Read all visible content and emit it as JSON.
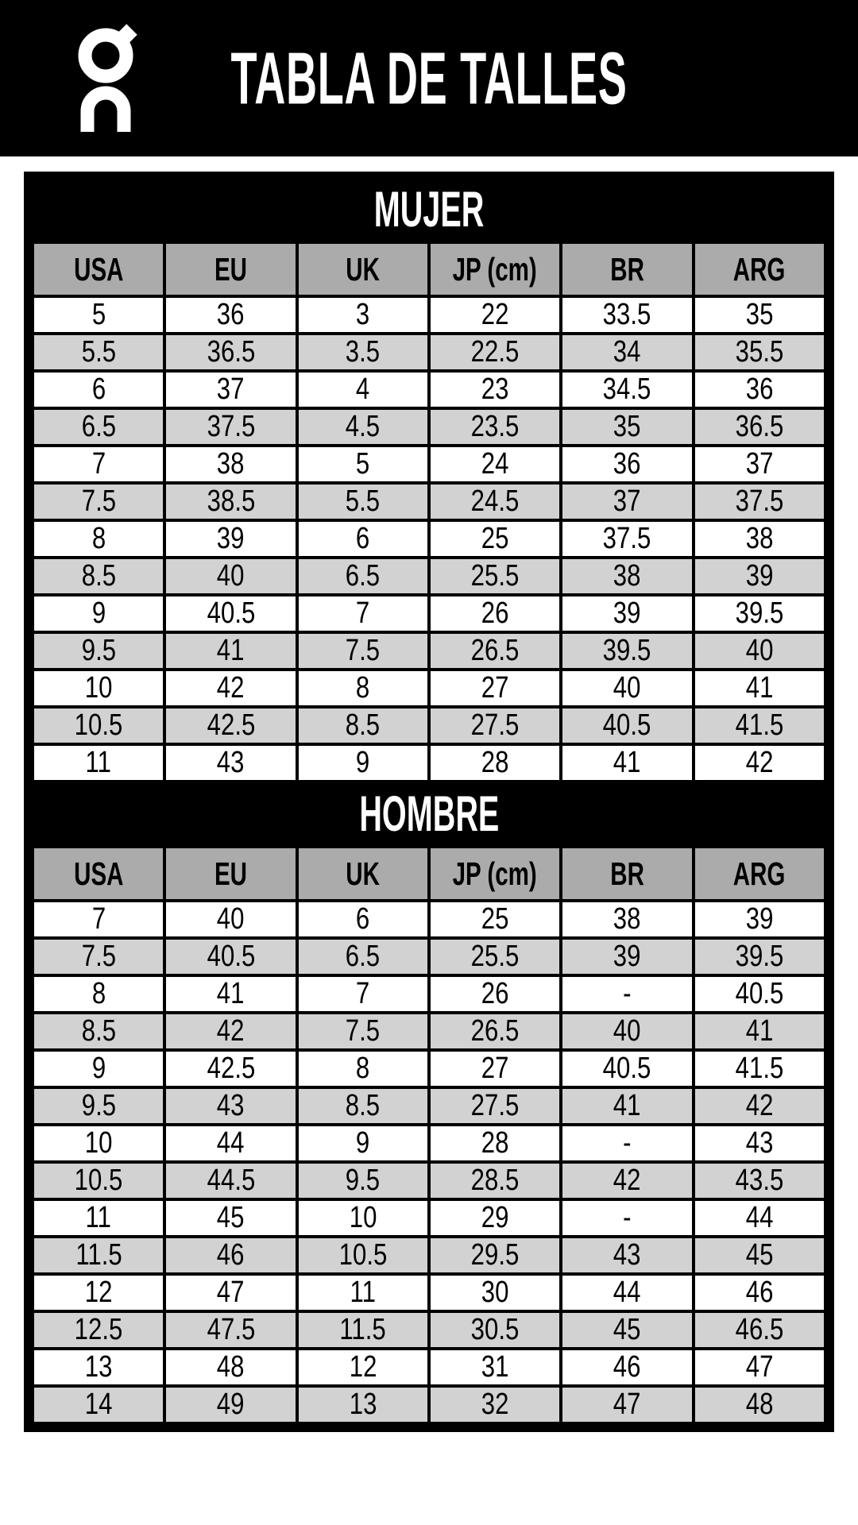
{
  "header": {
    "title": "TABLA DE TALLES",
    "logo": "on-brand-logo"
  },
  "table": {
    "columns": [
      "USA",
      "EU",
      "UK",
      "JP (cm)",
      "BR",
      "ARG"
    ],
    "sections": [
      {
        "title": "MUJER",
        "rows": [
          [
            "5",
            "36",
            "3",
            "22",
            "33.5",
            "35"
          ],
          [
            "5.5",
            "36.5",
            "3.5",
            "22.5",
            "34",
            "35.5"
          ],
          [
            "6",
            "37",
            "4",
            "23",
            "34.5",
            "36"
          ],
          [
            "6.5",
            "37.5",
            "4.5",
            "23.5",
            "35",
            "36.5"
          ],
          [
            "7",
            "38",
            "5",
            "24",
            "36",
            "37"
          ],
          [
            "7.5",
            "38.5",
            "5.5",
            "24.5",
            "37",
            "37.5"
          ],
          [
            "8",
            "39",
            "6",
            "25",
            "37.5",
            "38"
          ],
          [
            "8.5",
            "40",
            "6.5",
            "25.5",
            "38",
            "39"
          ],
          [
            "9",
            "40.5",
            "7",
            "26",
            "39",
            "39.5"
          ],
          [
            "9.5",
            "41",
            "7.5",
            "26.5",
            "39.5",
            "40"
          ],
          [
            "10",
            "42",
            "8",
            "27",
            "40",
            "41"
          ],
          [
            "10.5",
            "42.5",
            "8.5",
            "27.5",
            "40.5",
            "41.5"
          ],
          [
            "11",
            "43",
            "9",
            "28",
            "41",
            "42"
          ]
        ]
      },
      {
        "title": "HOMBRE",
        "rows": [
          [
            "7",
            "40",
            "6",
            "25",
            "38",
            "39"
          ],
          [
            "7.5",
            "40.5",
            "6.5",
            "25.5",
            "39",
            "39.5"
          ],
          [
            "8",
            "41",
            "7",
            "26",
            "-",
            "40.5"
          ],
          [
            "8.5",
            "42",
            "7.5",
            "26.5",
            "40",
            "41"
          ],
          [
            "9",
            "42.5",
            "8",
            "27",
            "40.5",
            "41.5"
          ],
          [
            "9.5",
            "43",
            "8.5",
            "27.5",
            "41",
            "42"
          ],
          [
            "10",
            "44",
            "9",
            "28",
            "-",
            "43"
          ],
          [
            "10.5",
            "44.5",
            "9.5",
            "28.5",
            "42",
            "43.5"
          ],
          [
            "11",
            "45",
            "10",
            "29",
            "-",
            "44"
          ],
          [
            "11.5",
            "46",
            "10.5",
            "29.5",
            "43",
            "45"
          ],
          [
            "12",
            "47",
            "11",
            "30",
            "44",
            "46"
          ],
          [
            "12.5",
            "47.5",
            "11.5",
            "30.5",
            "45",
            "46.5"
          ],
          [
            "13",
            "48",
            "12",
            "31",
            "46",
            "47"
          ],
          [
            "14",
            "49",
            "13",
            "32",
            "47",
            "48"
          ]
        ]
      }
    ]
  },
  "colors": {
    "header_background": "#000000",
    "banner_background": "#000000",
    "column_header_background": "#ababab",
    "row_background": "#ffffff",
    "row_alternate_background": "#d2d2d2",
    "border": "#000000",
    "banner_text": "#ffffff",
    "cell_text": "#000000"
  }
}
